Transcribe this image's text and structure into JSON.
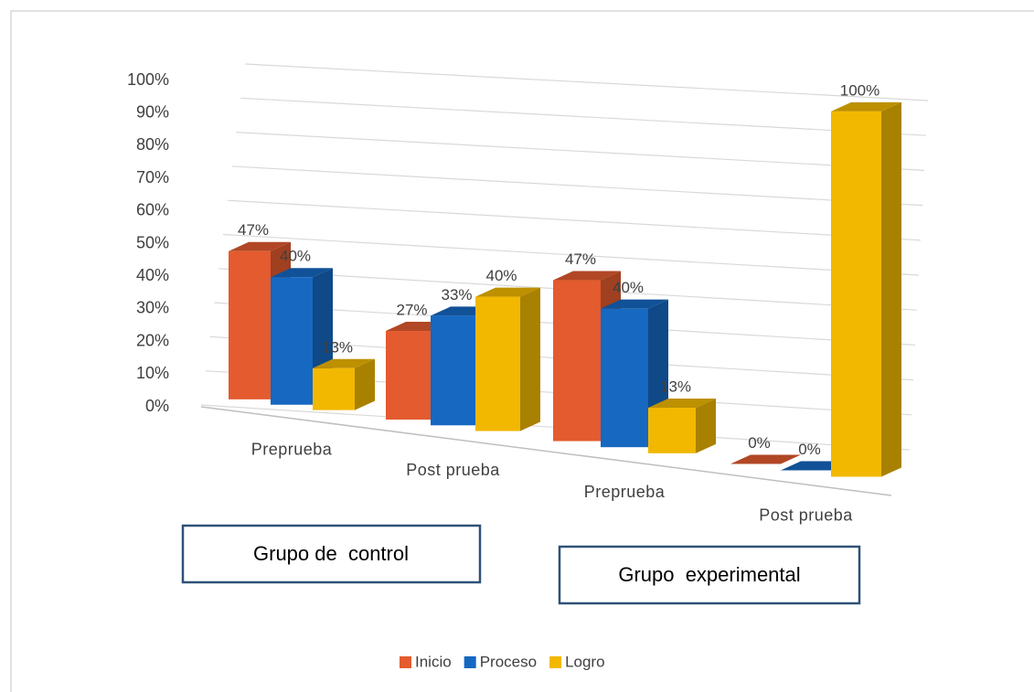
{
  "chart_data": {
    "type": "bar3d",
    "categories": [
      "Preprueba",
      "Post prueba",
      "Preprueba",
      "Post prueba"
    ],
    "series": [
      {
        "name": "Inicio",
        "color": "#e35b2f",
        "values": [
          47,
          27,
          47,
          0
        ],
        "value_labels": [
          "47%",
          "27%",
          "47%",
          "0%"
        ]
      },
      {
        "name": "Proceso",
        "color": "#1668c1",
        "values": [
          40,
          33,
          40,
          0
        ],
        "value_labels": [
          "40%",
          "33%",
          "40%",
          "0%"
        ]
      },
      {
        "name": "Logro",
        "color": "#f2b800",
        "values": [
          13,
          40,
          13,
          100
        ],
        "value_labels": [
          "13%",
          "40%",
          "13%",
          "100%"
        ]
      }
    ],
    "ylim": [
      0,
      100
    ],
    "yticks": [
      {
        "value": 0,
        "label": "0%"
      },
      {
        "value": 10,
        "label": "10%"
      },
      {
        "value": 20,
        "label": "20%"
      },
      {
        "value": 30,
        "label": "30%"
      },
      {
        "value": 40,
        "label": "40%"
      },
      {
        "value": 50,
        "label": "50%"
      },
      {
        "value": 60,
        "label": "60%"
      },
      {
        "value": 70,
        "label": "70%"
      },
      {
        "value": 80,
        "label": "80%"
      },
      {
        "value": 90,
        "label": "90%"
      },
      {
        "value": 100,
        "label": "100%"
      }
    ],
    "grid": true,
    "legend": "bottom",
    "annotations": [
      "Grupo de  control",
      "Grupo  experimental"
    ]
  }
}
